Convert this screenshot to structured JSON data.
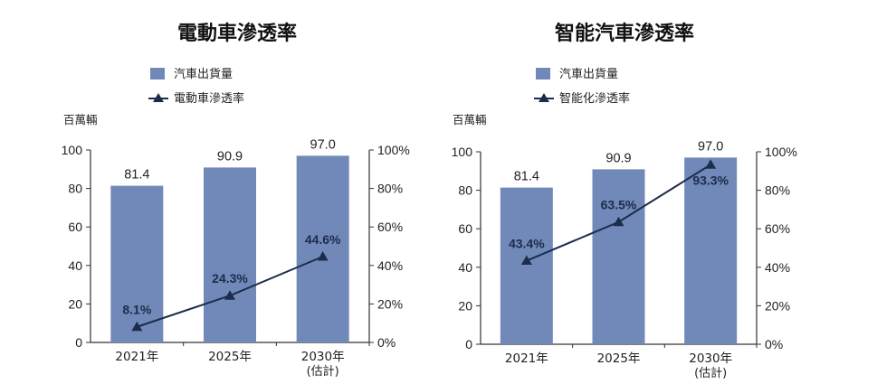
{
  "colors": {
    "bar": "#7189b8",
    "line": "#1c2c4c",
    "axis": "#333333"
  },
  "chart_data": [
    {
      "type": "bar",
      "title": "電動車滲透率",
      "unit_label": "百萬輛",
      "categories": [
        {
          "label": "2021年",
          "sub": ""
        },
        {
          "label": "2025年",
          "sub": ""
        },
        {
          "label": "2030年",
          "sub": "(估計)"
        }
      ],
      "series": [
        {
          "name": "汽車出貨量",
          "type": "bar",
          "axis": "left",
          "values": [
            81.4,
            90.9,
            97.0
          ],
          "labels": [
            "81.4",
            "90.9",
            "97.0"
          ]
        },
        {
          "name": "電動車滲透率",
          "type": "line",
          "axis": "right",
          "values": [
            8.1,
            24.3,
            44.6
          ],
          "labels": [
            "8.1%",
            "24.3%",
            "44.6%"
          ]
        }
      ],
      "y_left": {
        "min": 0,
        "max": 100,
        "ticks": [
          "0",
          "20",
          "40",
          "60",
          "80",
          "100"
        ]
      },
      "y_right": {
        "min": 0,
        "max": 100,
        "ticks": [
          "0%",
          "20%",
          "40%",
          "60%",
          "80%",
          "100%"
        ]
      },
      "grid": false,
      "legend_position": "top"
    },
    {
      "type": "bar",
      "title": "智能汽車滲透率",
      "unit_label": "百萬輛",
      "categories": [
        {
          "label": "2021年",
          "sub": ""
        },
        {
          "label": "2025年",
          "sub": ""
        },
        {
          "label": "2030年",
          "sub": "(估計)"
        }
      ],
      "series": [
        {
          "name": "汽車出貨量",
          "type": "bar",
          "axis": "left",
          "values": [
            81.4,
            90.9,
            97.0
          ],
          "labels": [
            "81.4",
            "90.9",
            "97.0"
          ]
        },
        {
          "name": "智能化滲透率",
          "type": "line",
          "axis": "right",
          "values": [
            43.4,
            63.5,
            93.3
          ],
          "labels": [
            "43.4%",
            "63.5%",
            "93.3%"
          ]
        }
      ],
      "y_left": {
        "min": 0,
        "max": 100,
        "ticks": [
          "0",
          "20",
          "40",
          "60",
          "80",
          "100"
        ]
      },
      "y_right": {
        "min": 0,
        "max": 100,
        "ticks": [
          "0%",
          "20%",
          "40%",
          "60%",
          "80%",
          "100%"
        ]
      },
      "grid": false,
      "legend_position": "top"
    }
  ]
}
